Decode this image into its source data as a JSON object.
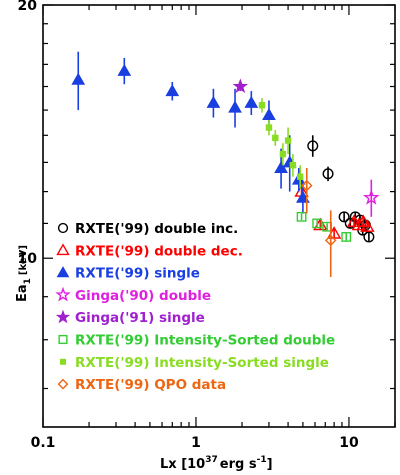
{
  "chart_data": {
    "type": "scatter",
    "title": "",
    "xlabel_main": "Lx [10",
    "xlabel_exp": "37",
    "xlabel_unit": "erg s",
    "xlabel_unit_exp": "-1",
    "xlabel_close": "]",
    "ylabel_main": "Ea",
    "ylabel_sub": "1",
    "ylabel_unit": "[keV]",
    "xscale": "log",
    "yscale": "log",
    "xlim": [
      0.1,
      20
    ],
    "ylim": [
      6.3,
      20
    ],
    "x_ticks": [
      {
        "value": 0.1,
        "label": "0.1"
      },
      {
        "value": 1,
        "label": "1"
      },
      {
        "value": 10,
        "label": "10"
      }
    ],
    "y_ticks": [
      {
        "value": 10,
        "label": "10"
      },
      {
        "value": 20,
        "label": "20"
      }
    ],
    "legend_position": "bottom-left",
    "series": [
      {
        "name": "RXTE('99) double inc.",
        "marker": "circle-open",
        "color": "#000000",
        "points": [
          {
            "x": 5.8,
            "y": 13.6,
            "yerr": [
              0.4,
              0.4
            ]
          },
          {
            "x": 7.3,
            "y": 12.6,
            "yerr": [
              0.25,
              0.25
            ]
          },
          {
            "x": 9.3,
            "y": 11.2,
            "yerr": [
              0.15,
              0.15
            ]
          },
          {
            "x": 10.2,
            "y": 11.0,
            "yerr": [
              0.15,
              0.15
            ]
          },
          {
            "x": 11.0,
            "y": 11.2,
            "yerr": [
              0.15,
              0.15
            ]
          },
          {
            "x": 11.8,
            "y": 11.1,
            "yerr": [
              0.15,
              0.15
            ]
          },
          {
            "x": 12.3,
            "y": 10.8,
            "yerr": [
              0.15,
              0.15
            ]
          },
          {
            "x": 12.8,
            "y": 10.95,
            "yerr": [
              0.15,
              0.15
            ]
          },
          {
            "x": 13.5,
            "y": 10.6,
            "yerr": [
              0.15,
              0.15
            ]
          }
        ]
      },
      {
        "name": "RXTE('99) double dec.",
        "marker": "triangle-open",
        "color": "#ff0000",
        "points": [
          {
            "x": 4.9,
            "y": 12.0,
            "yerr": [
              0.3,
              0.3
            ]
          },
          {
            "x": 6.5,
            "y": 10.95,
            "yerr": [
              0.15,
              0.15
            ]
          },
          {
            "x": 8.0,
            "y": 10.7,
            "yerr": [
              0.15,
              0.15
            ]
          },
          {
            "x": 10.8,
            "y": 11.05,
            "yerr": [
              0.12,
              0.12
            ]
          },
          {
            "x": 11.6,
            "y": 10.95,
            "yerr": [
              0.12,
              0.12
            ]
          },
          {
            "x": 12.4,
            "y": 11.05,
            "yerr": [
              0.12,
              0.12
            ]
          },
          {
            "x": 13.2,
            "y": 10.9,
            "yerr": [
              0.12,
              0.12
            ]
          }
        ]
      },
      {
        "name": "RXTE('99) single",
        "marker": "triangle-filled",
        "color": "#1a3fe0",
        "points": [
          {
            "x": 0.17,
            "y": 16.3,
            "yerr": [
              1.3,
              1.3
            ]
          },
          {
            "x": 0.34,
            "y": 16.7,
            "yerr": [
              0.6,
              0.6
            ]
          },
          {
            "x": 0.7,
            "y": 15.8,
            "yerr": [
              0.4,
              0.4
            ]
          },
          {
            "x": 1.3,
            "y": 15.3,
            "yerr": [
              0.6,
              0.6
            ]
          },
          {
            "x": 1.8,
            "y": 15.1,
            "yerr": [
              0.8,
              0.8
            ]
          },
          {
            "x": 2.3,
            "y": 15.3,
            "yerr": [
              0.5,
              0.5
            ]
          },
          {
            "x": 3.0,
            "y": 14.8,
            "yerr": [
              0.6,
              0.6
            ]
          },
          {
            "x": 3.6,
            "y": 12.8,
            "yerr": [
              0.7,
              0.7
            ]
          },
          {
            "x": 4.1,
            "y": 13.0,
            "yerr": [
              1.0,
              1.0
            ]
          },
          {
            "x": 4.7,
            "y": 12.4,
            "yerr": [
              0.4,
              0.4
            ]
          },
          {
            "x": 5.0,
            "y": 11.8,
            "yerr": [
              0.5,
              0.5
            ]
          }
        ]
      },
      {
        "name": "Ginga('90) double",
        "marker": "star-open",
        "color": "#e020e0",
        "points": [
          {
            "x": 14.0,
            "y": 11.8,
            "yerr": [
              0.6,
              0.6
            ]
          }
        ]
      },
      {
        "name": "Ginga('91) single",
        "marker": "star-filled",
        "color": "#a020d0",
        "points": [
          {
            "x": 1.95,
            "y": 16.0,
            "yerr": [
              0.2,
              0.2
            ]
          }
        ]
      },
      {
        "name": "RXTE('99) Intensity-Sorted double",
        "marker": "square-open",
        "color": "#33cc33",
        "points": [
          {
            "x": 4.9,
            "y": 11.2,
            "yerr": [
              0.1,
              0.1
            ]
          },
          {
            "x": 6.2,
            "y": 11.0,
            "yerr": [
              0.1,
              0.1
            ]
          },
          {
            "x": 7.2,
            "y": 10.9,
            "yerr": [
              0.1,
              0.1
            ]
          },
          {
            "x": 9.6,
            "y": 10.6,
            "yerr": [
              0.1,
              0.1
            ]
          }
        ]
      },
      {
        "name": "RXTE('99) Intensity-Sorted single",
        "marker": "square-filled",
        "color": "#88dd22",
        "points": [
          {
            "x": 2.7,
            "y": 15.2,
            "yerr": [
              0.3,
              0.3
            ]
          },
          {
            "x": 3.0,
            "y": 14.3,
            "yerr": [
              0.3,
              0.3
            ]
          },
          {
            "x": 3.3,
            "y": 13.9,
            "yerr": [
              0.3,
              0.3
            ]
          },
          {
            "x": 3.7,
            "y": 13.3,
            "yerr": [
              0.4,
              0.4
            ]
          },
          {
            "x": 4.0,
            "y": 13.8,
            "yerr": [
              0.5,
              0.5
            ]
          },
          {
            "x": 4.3,
            "y": 12.9,
            "yerr": [
              0.4,
              0.4
            ]
          },
          {
            "x": 4.8,
            "y": 12.5,
            "yerr": [
              0.4,
              0.4
            ]
          }
        ]
      },
      {
        "name": "RXTE('99) QPO data",
        "marker": "diamond-open",
        "color": "#ee6611",
        "points": [
          {
            "x": 5.3,
            "y": 12.2,
            "yerr": [
              0.9,
              0.6
            ]
          },
          {
            "x": 7.6,
            "y": 10.5,
            "yerr": [
              1.0,
              0.9
            ]
          }
        ]
      }
    ]
  }
}
